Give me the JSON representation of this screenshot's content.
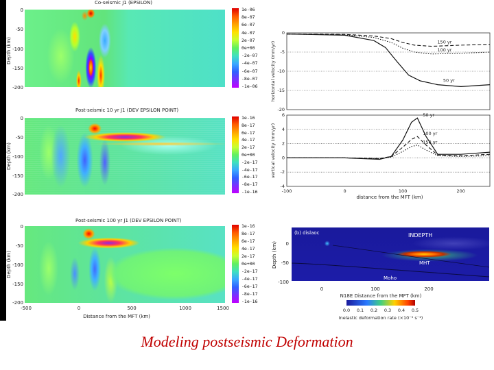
{
  "caption": "Modeling postseismic Deformation",
  "panels": [
    {
      "title": "Co-seismic   J1 (EPSILON)",
      "cbar": [
        "1e-06",
        "8e-07",
        "6e-07",
        "4e-07",
        "2e-07",
        "0e+00",
        "-2e-07",
        "-4e-07",
        "-6e-07",
        "-8e-07",
        "-1e-06"
      ]
    },
    {
      "title": "Post-seismic 10 yr   J1 (DEV EPSILON POINT)",
      "cbar": [
        "1e-16",
        "8e-17",
        "6e-17",
        "4e-17",
        "2e-17",
        "0e+00",
        "-2e-17",
        "-4e-17",
        "-6e-17",
        "-8e-17",
        "-1e-16"
      ]
    },
    {
      "title": "Post-seismic 100 yr   J1 (DEV EPSILON POINT)",
      "cbar": [
        "1e-16",
        "8e-17",
        "6e-17",
        "4e-17",
        "2e-17",
        "0e+00",
        "-2e-17",
        "-4e-17",
        "-6e-17",
        "-8e-17",
        "-1e-16"
      ]
    }
  ],
  "left_axes": {
    "ylabel": "Depth (km)",
    "yticks": [
      "0",
      "-50",
      "-100",
      "-150",
      "-200"
    ],
    "xticks": [
      "-500",
      "0",
      "500",
      "1000",
      "1500"
    ],
    "xlabel": "Distance from the MFT (km)"
  },
  "chart_data": [
    {
      "type": "line",
      "ylabel": "horizontal velocity (mm/yr)",
      "xlim": [
        -100,
        250
      ],
      "ylim": [
        -20,
        0
      ],
      "yticks": [
        "0",
        "-5",
        "-10",
        "-15",
        "-20"
      ],
      "series": [
        {
          "name": "150 yr",
          "style": "dashed",
          "x": [
            -100,
            0,
            50,
            80,
            100,
            120,
            150,
            200,
            250
          ],
          "y": [
            -0.3,
            -0.4,
            -0.8,
            -1.5,
            -2.5,
            -3.2,
            -3.5,
            -3.2,
            -3.0
          ]
        },
        {
          "name": "100 yr",
          "style": "dotted",
          "x": [
            -100,
            0,
            50,
            80,
            100,
            120,
            150,
            200,
            250
          ],
          "y": [
            -0.3,
            -0.5,
            -1.2,
            -2.5,
            -4.0,
            -5.0,
            -5.5,
            -5.3,
            -5.0
          ]
        },
        {
          "name": "50 yr",
          "style": "solid",
          "x": [
            -100,
            0,
            50,
            70,
            90,
            110,
            130,
            160,
            200,
            250
          ],
          "y": [
            -0.3,
            -0.6,
            -2.0,
            -3.8,
            -7.5,
            -11.0,
            -12.5,
            -13.5,
            -14.0,
            -13.5
          ]
        }
      ]
    },
    {
      "type": "line",
      "ylabel": "vertical velocity (mm/yr)",
      "xlabel": "distance from the MFT (km)",
      "xlim": [
        -100,
        250
      ],
      "ylim": [
        -4,
        6
      ],
      "yticks": [
        "6",
        "4",
        "2",
        "0",
        "-2",
        "-4"
      ],
      "xticks": [
        "-100",
        "0",
        "100",
        "200"
      ],
      "series": [
        {
          "name": "50 yr",
          "style": "solid",
          "x": [
            -100,
            0,
            60,
            80,
            100,
            115,
            125,
            140,
            160,
            200,
            250
          ],
          "y": [
            0,
            0,
            -0.2,
            0.2,
            2.5,
            5.0,
            5.6,
            3.0,
            0.5,
            0.5,
            0.8
          ]
        },
        {
          "name": "100 yr",
          "style": "dashed",
          "x": [
            -100,
            0,
            60,
            80,
            100,
            115,
            125,
            140,
            160,
            200,
            250
          ],
          "y": [
            0,
            0,
            -0.1,
            0.2,
            1.5,
            2.6,
            3.0,
            1.8,
            0.4,
            0.3,
            0.5
          ]
        },
        {
          "name": "150 yr",
          "style": "dotted",
          "x": [
            -100,
            0,
            60,
            80,
            100,
            115,
            125,
            140,
            160,
            200,
            250
          ],
          "y": [
            0,
            0,
            -0.1,
            0.1,
            0.9,
            1.6,
            1.8,
            1.1,
            0.3,
            0.2,
            0.3
          ]
        }
      ]
    }
  ],
  "section": {
    "label": "(b) dislaoc",
    "ylabel": "Depth (km)",
    "yticks": [
      "0",
      "-50",
      "-100"
    ],
    "xticks": [
      "0",
      "100",
      "200"
    ],
    "xlabel": "N18E Distance from the MFT (km)",
    "indepth": "INDEPTH",
    "mht": "MHT",
    "moho": "Moho",
    "cbar_ticks": [
      "0.0",
      "0.1",
      "0.2",
      "0.3",
      "0.4",
      "0.5"
    ],
    "cbar_label": "Inelastic deformation rate (×10⁻⁵ s⁻¹)"
  }
}
